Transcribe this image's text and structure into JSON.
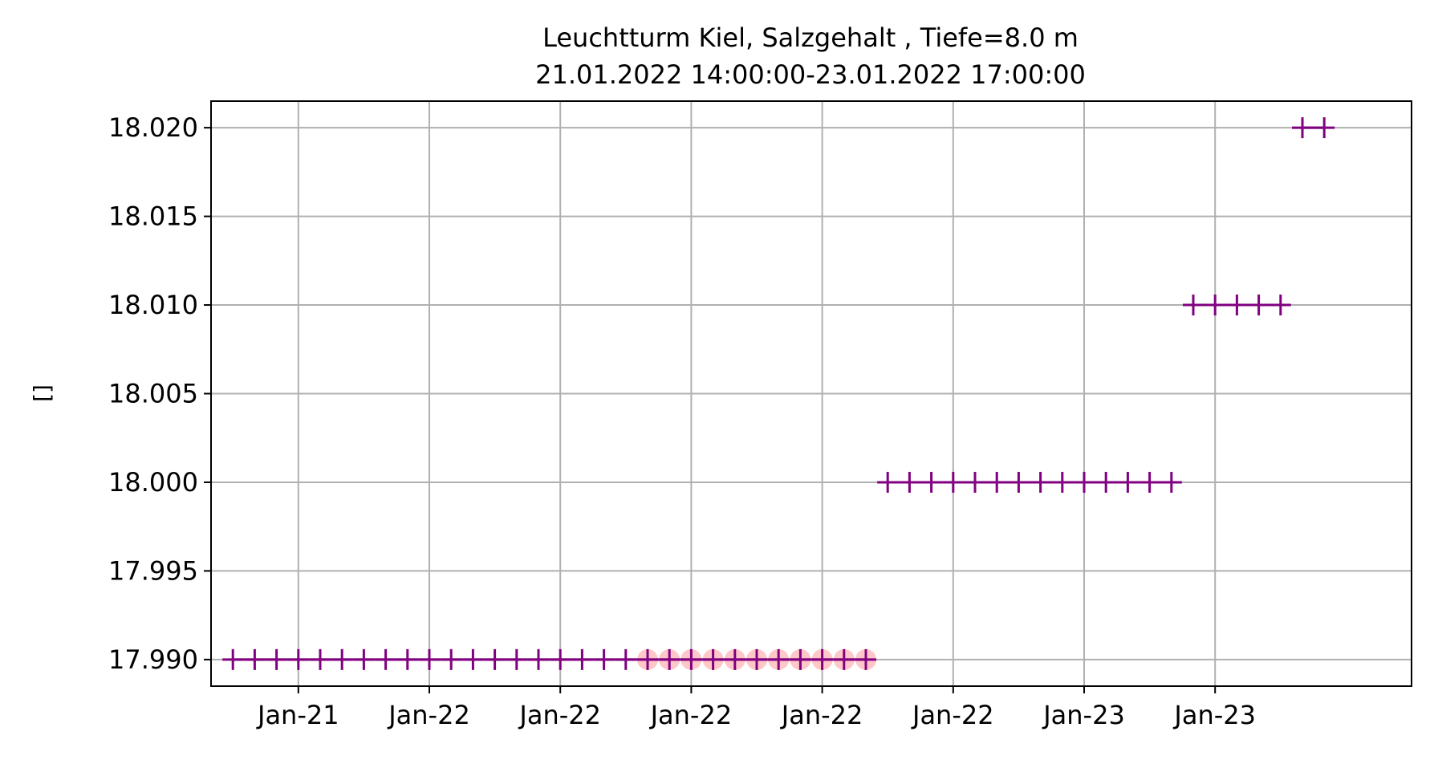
{
  "chart_data": {
    "type": "line",
    "title_line1": "Leuchtturm Kiel, Salzgehalt , Tiefe=8.0 m",
    "title_line2": "21.01.2022 14:00:00-23.01.2022 17:00:00",
    "xlabel": "",
    "ylabel": "[]",
    "ylim": [
      17.9885,
      18.0215
    ],
    "xlim": [
      "2022-01-21 10:00",
      "2022-01-23 17:00"
    ],
    "yticks": [
      17.99,
      17.995,
      18.0,
      18.005,
      18.01,
      18.015,
      18.02
    ],
    "ytick_labels": [
      "17.990",
      "17.995",
      "18.000",
      "18.005",
      "18.010",
      "18.015",
      "18.020"
    ],
    "xticks": [
      "2022-01-21 14:00",
      "2022-01-21 20:00",
      "2022-01-22 02:00",
      "2022-01-22 08:00",
      "2022-01-22 14:00",
      "2022-01-22 20:00",
      "2022-01-23 02:00",
      "2022-01-23 08:00"
    ],
    "xtick_labels": [
      "Jan-21",
      "Jan-22",
      "Jan-22",
      "Jan-22",
      "Jan-22",
      "Jan-22",
      "Jan-23",
      "Jan-23"
    ],
    "grid": true,
    "series": [
      {
        "marker": "line-plus",
        "color": "#800080",
        "points": [
          {
            "t": "2022-01-21 11:00",
            "v": 17.99
          },
          {
            "t": "2022-01-21 12:00",
            "v": 17.99
          },
          {
            "t": "2022-01-21 13:00",
            "v": 17.99
          },
          {
            "t": "2022-01-21 14:00",
            "v": 17.99
          },
          {
            "t": "2022-01-21 15:00",
            "v": 17.99
          },
          {
            "t": "2022-01-21 16:00",
            "v": 17.99
          },
          {
            "t": "2022-01-21 17:00",
            "v": 17.99
          },
          {
            "t": "2022-01-21 18:00",
            "v": 17.99
          },
          {
            "t": "2022-01-21 19:00",
            "v": 17.99
          },
          {
            "t": "2022-01-21 20:00",
            "v": 17.99
          },
          {
            "t": "2022-01-21 21:00",
            "v": 17.99
          },
          {
            "t": "2022-01-21 22:00",
            "v": 17.99
          },
          {
            "t": "2022-01-21 23:00",
            "v": 17.99
          },
          {
            "t": "2022-01-22 00:00",
            "v": 17.99
          },
          {
            "t": "2022-01-22 01:00",
            "v": 17.99
          },
          {
            "t": "2022-01-22 02:00",
            "v": 17.99
          },
          {
            "t": "2022-01-22 03:00",
            "v": 17.99
          },
          {
            "t": "2022-01-22 04:00",
            "v": 17.99
          },
          {
            "t": "2022-01-22 05:00",
            "v": 17.99
          },
          {
            "t": "2022-01-22 06:00",
            "v": 17.99
          },
          {
            "t": "2022-01-22 07:00",
            "v": 17.99
          },
          {
            "t": "2022-01-22 08:00",
            "v": 17.99
          },
          {
            "t": "2022-01-22 09:00",
            "v": 17.99
          },
          {
            "t": "2022-01-22 10:00",
            "v": 17.99
          },
          {
            "t": "2022-01-22 11:00",
            "v": 17.99
          },
          {
            "t": "2022-01-22 12:00",
            "v": 17.99
          },
          {
            "t": "2022-01-22 13:00",
            "v": 17.99
          },
          {
            "t": "2022-01-22 14:00",
            "v": 17.99
          },
          {
            "t": "2022-01-22 15:00",
            "v": 17.99
          },
          {
            "t": "2022-01-22 16:00",
            "v": 17.99
          },
          {
            "t": "2022-01-22 17:00",
            "v": 18.0
          },
          {
            "t": "2022-01-22 18:00",
            "v": 18.0
          },
          {
            "t": "2022-01-22 19:00",
            "v": 18.0
          },
          {
            "t": "2022-01-22 20:00",
            "v": 18.0
          },
          {
            "t": "2022-01-22 21:00",
            "v": 18.0
          },
          {
            "t": "2022-01-22 22:00",
            "v": 18.0
          },
          {
            "t": "2022-01-22 23:00",
            "v": 18.0
          },
          {
            "t": "2022-01-23 00:00",
            "v": 18.0
          },
          {
            "t": "2022-01-23 01:00",
            "v": 18.0
          },
          {
            "t": "2022-01-23 02:00",
            "v": 18.0
          },
          {
            "t": "2022-01-23 03:00",
            "v": 18.0
          },
          {
            "t": "2022-01-23 04:00",
            "v": 18.0
          },
          {
            "t": "2022-01-23 05:00",
            "v": 18.0
          },
          {
            "t": "2022-01-23 06:00",
            "v": 18.0
          },
          {
            "t": "2022-01-23 07:00",
            "v": 18.01
          },
          {
            "t": "2022-01-23 08:00",
            "v": 18.01
          },
          {
            "t": "2022-01-23 09:00",
            "v": 18.01
          },
          {
            "t": "2022-01-23 10:00",
            "v": 18.01
          },
          {
            "t": "2022-01-23 11:00",
            "v": 18.01
          },
          {
            "t": "2022-01-23 12:00",
            "v": 18.02
          },
          {
            "t": "2022-01-23 13:00",
            "v": 18.02
          }
        ]
      },
      {
        "marker": "circle",
        "color": "#ff9999",
        "points": [
          {
            "t": "2022-01-22 06:00",
            "v": 17.99
          },
          {
            "t": "2022-01-22 07:00",
            "v": 17.99
          },
          {
            "t": "2022-01-22 08:00",
            "v": 17.99
          },
          {
            "t": "2022-01-22 09:00",
            "v": 17.99
          },
          {
            "t": "2022-01-22 10:00",
            "v": 17.99
          },
          {
            "t": "2022-01-22 11:00",
            "v": 17.99
          },
          {
            "t": "2022-01-22 12:00",
            "v": 17.99
          },
          {
            "t": "2022-01-22 13:00",
            "v": 17.99
          },
          {
            "t": "2022-01-22 14:00",
            "v": 17.99
          },
          {
            "t": "2022-01-22 15:00",
            "v": 17.99
          },
          {
            "t": "2022-01-22 16:00",
            "v": 17.99
          }
        ]
      }
    ]
  }
}
